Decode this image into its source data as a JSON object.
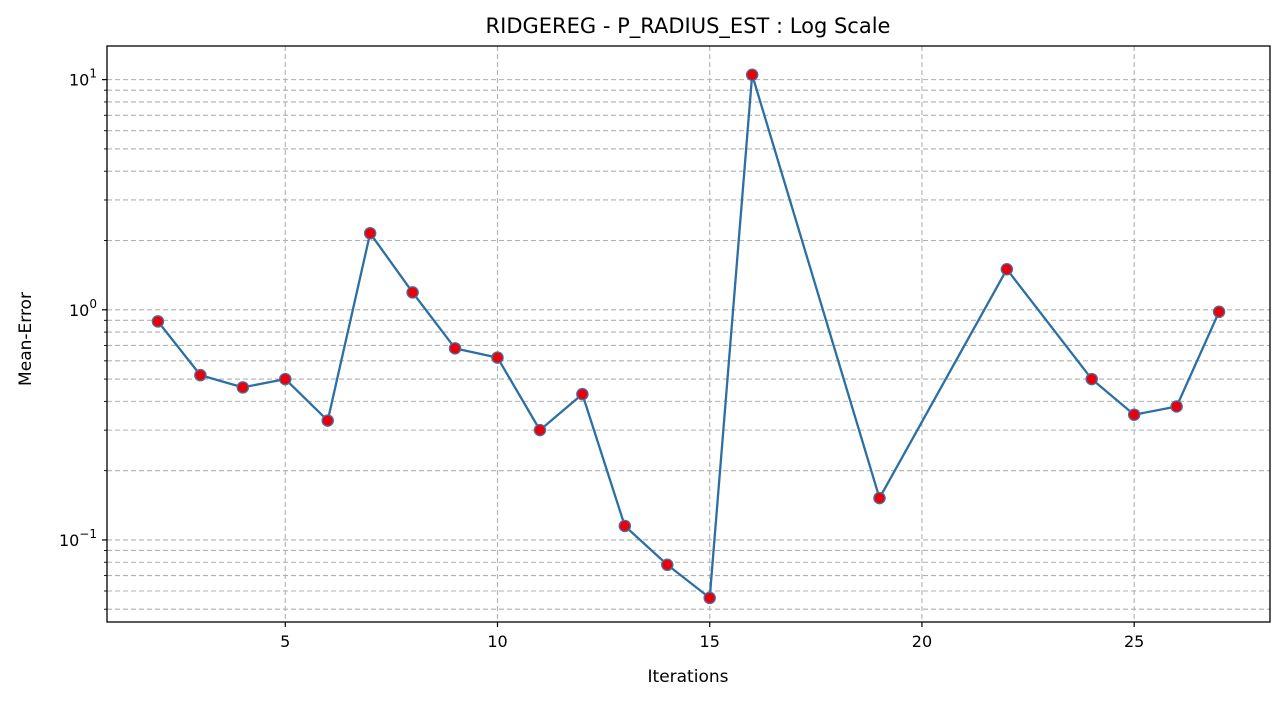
{
  "chart_data": {
    "type": "line",
    "title": "RIDGEREG - P_RADIUS_EST : Log Scale",
    "xlabel": "Iterations",
    "ylabel": "Mean-Error",
    "y_scale": "log",
    "grid": true,
    "grid_style": "dashed",
    "legend": "none",
    "xlim": [
      0.8,
      28.2
    ],
    "ylim": [
      0.044,
      14.0
    ],
    "x_ticks": [
      5,
      10,
      15,
      20,
      25
    ],
    "y_ticks": [
      {
        "value": 0.1,
        "base": "10",
        "exp": "−1"
      },
      {
        "value": 1,
        "base": "10",
        "exp": "0"
      },
      {
        "value": 10,
        "base": "10",
        "exp": "1"
      }
    ],
    "series": [
      {
        "line_color": "#2b6fa3",
        "marker_fill": "#e8000b",
        "marker_edge": "#4a6fa0",
        "x": [
          2,
          3,
          4,
          5,
          6,
          7,
          8,
          9,
          10,
          11,
          12,
          13,
          14,
          15,
          16,
          19,
          22,
          24,
          25,
          26,
          27
        ],
        "y": [
          0.89,
          0.52,
          0.46,
          0.5,
          0.33,
          2.15,
          1.19,
          0.68,
          0.62,
          0.3,
          0.43,
          0.115,
          0.078,
          0.056,
          10.5,
          0.152,
          1.5,
          0.5,
          0.35,
          0.38,
          0.98
        ]
      }
    ]
  }
}
